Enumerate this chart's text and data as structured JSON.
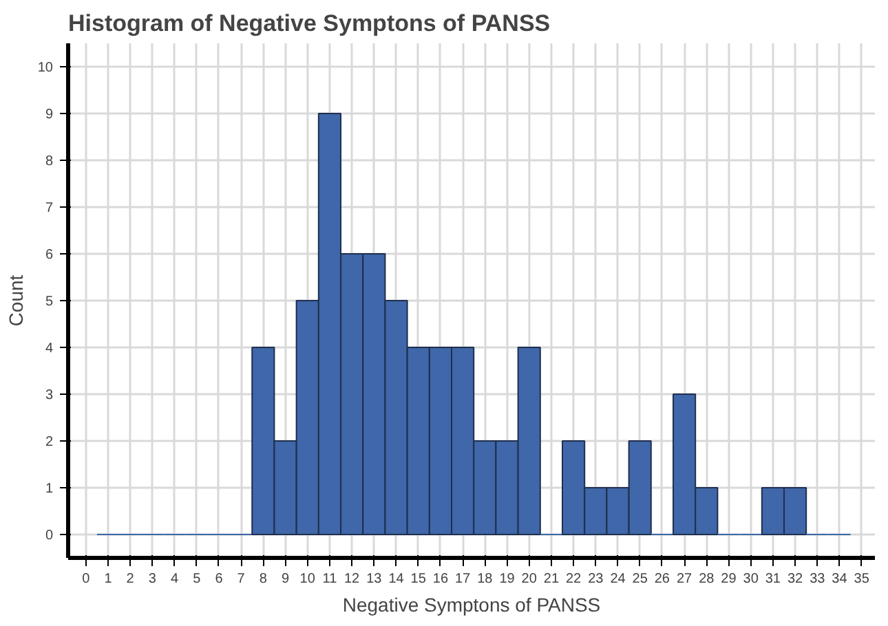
{
  "chart_data": {
    "type": "histogram",
    "title": "Histogram of Negative Symptons of PANSS",
    "xlabel": "Negative Symptons of PANSS",
    "ylabel": "Count",
    "bins": [
      0.5,
      1.5,
      2.5,
      3.5,
      4.5,
      5.5,
      6.5,
      7.5,
      8.5,
      9.5,
      10.5,
      11.5,
      12.5,
      13.5,
      14.5,
      15.5,
      16.5,
      17.5,
      18.5,
      19.5,
      20.5,
      21.5,
      22.5,
      23.5,
      24.5,
      25.5,
      26.5,
      27.5,
      28.5,
      29.5,
      30.5,
      31.5,
      32.5,
      33.5,
      34.5
    ],
    "values": [
      0,
      0,
      0,
      0,
      0,
      0,
      0,
      4,
      2,
      5,
      9,
      6,
      6,
      5,
      4,
      4,
      4,
      2,
      2,
      4,
      0,
      2,
      1,
      1,
      2,
      0,
      3,
      1,
      0,
      0,
      1,
      1,
      0,
      0
    ],
    "color": "#3f67a9",
    "xlim": [
      -0.8,
      35.6
    ],
    "ylim": [
      -0.5,
      10.5
    ],
    "xticks": [
      0,
      1,
      2,
      3,
      4,
      5,
      6,
      7,
      8,
      9,
      10,
      11,
      12,
      13,
      14,
      15,
      16,
      17,
      18,
      19,
      20,
      21,
      22,
      23,
      24,
      25,
      26,
      27,
      28,
      29,
      30,
      31,
      32,
      33,
      34,
      35
    ],
    "yticks": [
      0,
      1,
      2,
      3,
      4,
      5,
      6,
      7,
      8,
      9,
      10
    ],
    "grid": true
  }
}
